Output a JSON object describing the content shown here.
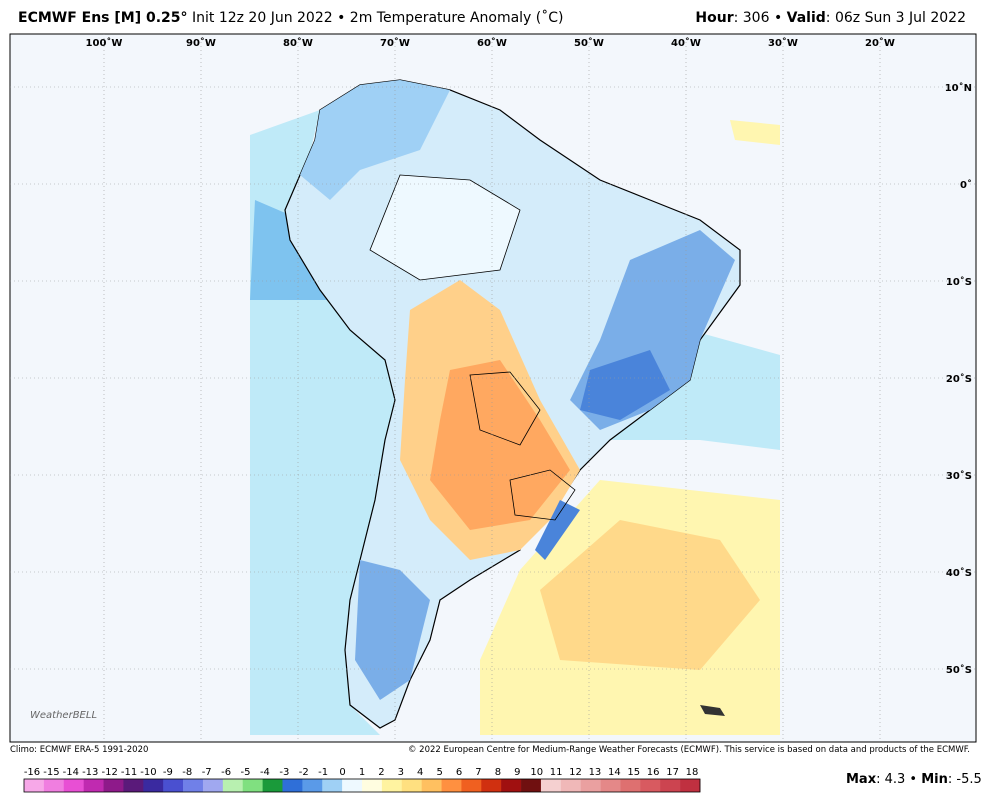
{
  "header": {
    "left_bold": "ECMWF Ens [M] 0.25°",
    "left_text": " Init 12z 20 Jun 2022 • 2m Temperature Anomaly (˚C)",
    "right": [
      "Hour",
      ": 306 • ",
      "Valid",
      ": 06z Sun 3 Jul 2022"
    ]
  },
  "map": {
    "lon_labels": [
      "100˚W",
      "90˚W",
      "80˚W",
      "70˚W",
      "60˚W",
      "50˚W",
      "40˚W",
      "30˚W",
      "20˚W"
    ],
    "lat_labels": [
      "10˚N",
      "0˚",
      "10˚S",
      "20˚S",
      "30˚S",
      "40˚S",
      "50˚S"
    ],
    "logo": "WeatherBELL"
  },
  "footer": {
    "climo": "Climo: ECMWF ERA-5 1991-2020",
    "copyright": "© 2022 European Centre for Medium-Range Weather Forecasts (ECMWF). This service is based on data and products of the ECMWF.",
    "stats": [
      "Max",
      ": 4.3 • ",
      "Min",
      ": -5.5"
    ]
  },
  "colorbar": {
    "ticks": [
      -16,
      -15,
      -14,
      -13,
      -12,
      -11,
      -10,
      -9,
      -8,
      -7,
      -6,
      -5,
      -4,
      -3,
      -2,
      -1,
      0,
      1,
      2,
      3,
      4,
      5,
      6,
      7,
      8,
      9,
      10,
      11,
      12,
      13,
      14,
      15,
      16,
      17,
      18
    ],
    "colors": [
      "#f7a8e8",
      "#f07ee0",
      "#e84fd4",
      "#c02ab0",
      "#8e1a8a",
      "#5a1a7a",
      "#3a2aa0",
      "#4a50d0",
      "#7080e8",
      "#a0a8f0",
      "#b8f0b0",
      "#80e080",
      "#1a9a3a",
      "#2f6fd8",
      "#5a9ae8",
      "#9fd0f5",
      "#eef9ff",
      "#fffde0",
      "#fff3a0",
      "#ffe080",
      "#ffc060",
      "#ff9040",
      "#f06020",
      "#d03010",
      "#a01010",
      "#701010",
      "#f5d0d0",
      "#f0b8b8",
      "#eaa0a0",
      "#e48888",
      "#de7070",
      "#d85a60",
      "#cc4450",
      "#c03040"
    ]
  }
}
